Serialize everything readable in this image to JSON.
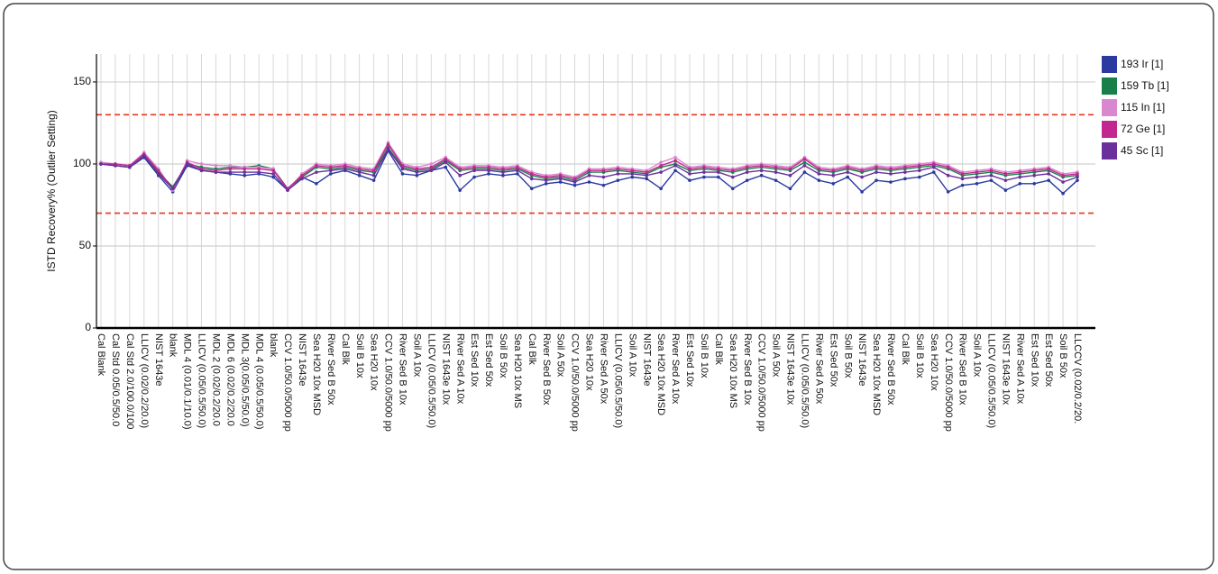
{
  "chart_data": {
    "type": "line",
    "y_label": "ISTD Recovery% (Outlier Setting)",
    "categories": [
      "Cal Blank",
      "Cal Std 0.05/0.5/50.0",
      "Cal Std 2.0/100.0/100",
      "LLICV (0.02/0.2/20.0)",
      "NIST 1643e",
      "blank",
      "MDL 4 (0.01/0.1/10.0)",
      "LLICV (0.05/0.5/50.0)",
      "MDL 2 (0.02/0.2/20.0",
      "MDL 6 (0.02/0.2/20.0",
      "MDL 3(0.05/0.5/50.0)",
      "MDL 4 (0.05/0.5/50.0)",
      "blank",
      "CCV 1.0/50.0/5000 pp",
      "NIST 1643e",
      "Sea H20 10x MSD",
      "River Sed B 50x",
      "Cal Blk",
      "Soil B 10x",
      "Sea H20 10x",
      "CCV 1.0/50.0/5000 pp",
      "River Sed B 10x",
      "Soil A 10x",
      "LLICV (0.05/0.5/50.0)",
      "NIST 1643e 10x",
      "River Sed A 10x",
      "Est Sed 10x",
      "Est Sed 50x",
      "Soil B 50x",
      "Sea H20 10x MS",
      "Cal Blk",
      "River Sed B 50x",
      "Soil A 50x",
      "CCV 1.0/50.0/5000 pp",
      "Sea H20 10x",
      "River Sed A 50x",
      "LLICV (0.05/0.5/50.0)",
      "Soil A 10x",
      "NIST 1643e",
      "Sea H20 10x MSD",
      "River Sed A 10x",
      "Est Sed 10x",
      "Soil B 10x",
      "Cal Blk",
      "Sea H20 10x MS",
      "River Sed B 10x",
      "CCV 1.0/50.0/5000 pp",
      "Soil A 50x",
      "NIST 1643e 10x",
      "LLICV (0.05/0.5/50.0)",
      "River Sed A 50x",
      "Est Sed 50x",
      "Soil B 50x",
      "NIST 1643e",
      "Sea H20 10x MSD",
      "River Sed B 50x",
      "Cal Blk",
      "Soil B 10x",
      "Sea H20 10x",
      "CCV 1.0/50.0/5000 pp",
      "River Sed B 10x",
      "Soil A 10x",
      "LLICV (0.05/0.5/50.0)",
      "NIST 1643e 10x",
      "River Sed A 10x",
      "Est Sed 10x",
      "Est Sed 50x",
      "Soil B 50x",
      "LLCCV (0.02/0.2/20."
    ],
    "series": [
      {
        "name": "193 Ir [1]",
        "color": "#2a3aa0",
        "values": [
          100,
          99,
          98,
          104,
          93,
          83,
          99,
          96,
          95,
          94,
          93,
          94,
          92,
          84,
          92,
          88,
          94,
          96,
          93,
          90,
          108,
          94,
          93,
          96,
          98,
          84,
          92,
          94,
          93,
          94,
          85,
          88,
          89,
          87,
          89,
          87,
          90,
          92,
          91,
          85,
          96,
          90,
          92,
          92,
          85,
          90,
          93,
          90,
          85,
          95,
          90,
          88,
          92,
          83,
          90,
          89,
          91,
          92,
          95,
          83,
          87,
          88,
          90,
          84,
          88,
          88,
          90,
          82,
          90
        ]
      },
      {
        "name": "159 Tb [1]",
        "color": "#17804a",
        "values": [
          100,
          99,
          98,
          105,
          95,
          86,
          100,
          98,
          97,
          98,
          98,
          99,
          97,
          85,
          92,
          98,
          97,
          98,
          96,
          95,
          110,
          98,
          96,
          97,
          102,
          96,
          97,
          97,
          96,
          97,
          93,
          91,
          92,
          90,
          95,
          95,
          96,
          95,
          94,
          98,
          100,
          96,
          97,
          96,
          95,
          97,
          98,
          97,
          96,
          101,
          96,
          95,
          97,
          95,
          97,
          96,
          97,
          98,
          99,
          97,
          93,
          94,
          95,
          93,
          94,
          95,
          96,
          92,
          93
        ]
      },
      {
        "name": "115 In [1]",
        "color": "#d987cf",
        "values": [
          101,
          100,
          99,
          107,
          97,
          84,
          102,
          100,
          99,
          99,
          98,
          98,
          97,
          84,
          94,
          100,
          99,
          100,
          98,
          97,
          113,
          100,
          98,
          100,
          104,
          98,
          99,
          99,
          98,
          99,
          95,
          93,
          94,
          92,
          97,
          97,
          98,
          97,
          96,
          101,
          104,
          98,
          99,
          98,
          97,
          99,
          100,
          99,
          98,
          104,
          98,
          97,
          99,
          97,
          99,
          98,
          99,
          100,
          101,
          99,
          95,
          96,
          97,
          95,
          96,
          97,
          98,
          94,
          95
        ]
      },
      {
        "name": "72 Ge [1]",
        "color": "#c2268f",
        "values": [
          100,
          100,
          99,
          106,
          96,
          85,
          101,
          97,
          96,
          97,
          97,
          97,
          96,
          85,
          93,
          99,
          98,
          99,
          97,
          96,
          112,
          99,
          97,
          98,
          103,
          97,
          98,
          98,
          97,
          98,
          94,
          92,
          93,
          91,
          96,
          96,
          97,
          96,
          95,
          99,
          102,
          97,
          98,
          97,
          96,
          98,
          99,
          98,
          97,
          103,
          97,
          96,
          98,
          96,
          98,
          97,
          98,
          99,
          100,
          98,
          94,
          95,
          96,
          94,
          95,
          96,
          97,
          93,
          94
        ]
      },
      {
        "name": "45 Sc [1]",
        "color": "#6b2f9c",
        "values": [
          100,
          99,
          98,
          105,
          94,
          85,
          100,
          96,
          95,
          95,
          95,
          95,
          94,
          84,
          91,
          95,
          96,
          97,
          95,
          93,
          109,
          97,
          95,
          96,
          101,
          93,
          96,
          96,
          95,
          96,
          91,
          90,
          91,
          89,
          93,
          92,
          94,
          94,
          93,
          95,
          99,
          94,
          95,
          95,
          92,
          95,
          96,
          95,
          93,
          99,
          94,
          93,
          95,
          92,
          95,
          94,
          95,
          96,
          98,
          93,
          91,
          92,
          93,
          90,
          92,
          93,
          94,
          89,
          92
        ]
      }
    ],
    "ylim": [
      0,
      167
    ],
    "yticks": [
      0,
      50,
      100,
      150
    ],
    "grid": true,
    "reference_lines": [
      130,
      70
    ],
    "reference_color": "#e8341c",
    "legend": "right"
  }
}
